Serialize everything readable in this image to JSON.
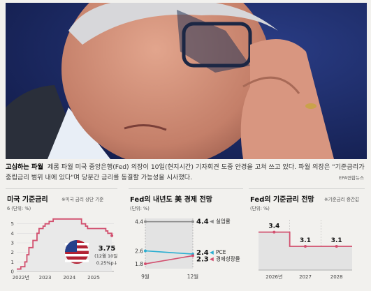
{
  "caption": {
    "lead": "고심하는 파월",
    "text": "제롬 파월 미국 중앙은행(Fed) 의장이 10일(현지시간) 기자회견 도중 안경을 고쳐 쓰고 있다. 파월 의장은 \"기준금리가 중립금리 범위 내에 있다\"며 당분간 금리를 동결할 가능성을 시사했다.",
    "credit": "EPA연합뉴스"
  },
  "chart_data": [
    {
      "type": "line",
      "title": "미국 기준금리",
      "note": "※미국 금리 상단 기준",
      "unit": "6 (단위: %)",
      "x_ticks": [
        "2022년",
        "2023",
        "2024",
        "2025"
      ],
      "y_ticks": [
        "0",
        "1",
        "2",
        "3",
        "4",
        "5"
      ],
      "ylim": [
        0,
        6
      ],
      "series": [
        {
          "values": [
            [
              "2022-01",
              0.25
            ],
            [
              "2022-03",
              0.5
            ],
            [
              "2022-05",
              1.0
            ],
            [
              "2022-06",
              1.75
            ],
            [
              "2022-07",
              2.5
            ],
            [
              "2022-09",
              3.25
            ],
            [
              "2022-11",
              4.0
            ],
            [
              "2022-12",
              4.5
            ],
            [
              "2023-02",
              4.75
            ],
            [
              "2023-03",
              5.0
            ],
            [
              "2023-05",
              5.25
            ],
            [
              "2023-07",
              5.5
            ],
            [
              "2024-09",
              5.0
            ],
            [
              "2024-11",
              4.75
            ],
            [
              "2024-12",
              4.5
            ],
            [
              "2025-09",
              4.25
            ],
            [
              "2025-10",
              4.0
            ],
            [
              "2025-12",
              3.75
            ]
          ]
        }
      ],
      "annotation": {
        "value": "3.75",
        "date": "(12월 10일)",
        "change": "0.25%p↓"
      },
      "color": "#d2506f"
    },
    {
      "type": "line",
      "title": "Fed의 내년도 美 경제 전망",
      "unit": "(단위: %)",
      "x_ticks": [
        "9월",
        "12월"
      ],
      "ylim": [
        1.5,
        4.6
      ],
      "series": [
        {
          "name": "실업률",
          "values": [
            4.4,
            4.4
          ],
          "color": "#8c8c8c"
        },
        {
          "name": "PCE",
          "values": [
            2.6,
            2.4
          ],
          "color": "#2aaed1"
        },
        {
          "name": "경제성장률",
          "values": [
            1.8,
            2.3
          ],
          "color": "#d2506f"
        }
      ],
      "left_labels": [
        "4.4",
        "2.6",
        "1.8"
      ],
      "right_labels": [
        "4.4",
        "2.4",
        "2.3"
      ]
    },
    {
      "type": "line",
      "title": "Fed의 기준금리 전망",
      "note": "※기준금리 중간값",
      "unit": "(단위: %)",
      "categories": [
        "2026년",
        "2027",
        "2028"
      ],
      "values": [
        3.4,
        3.1,
        3.1
      ],
      "value_labels": [
        "3.4",
        "3.1",
        "3.1"
      ],
      "color": "#d2506f"
    }
  ]
}
